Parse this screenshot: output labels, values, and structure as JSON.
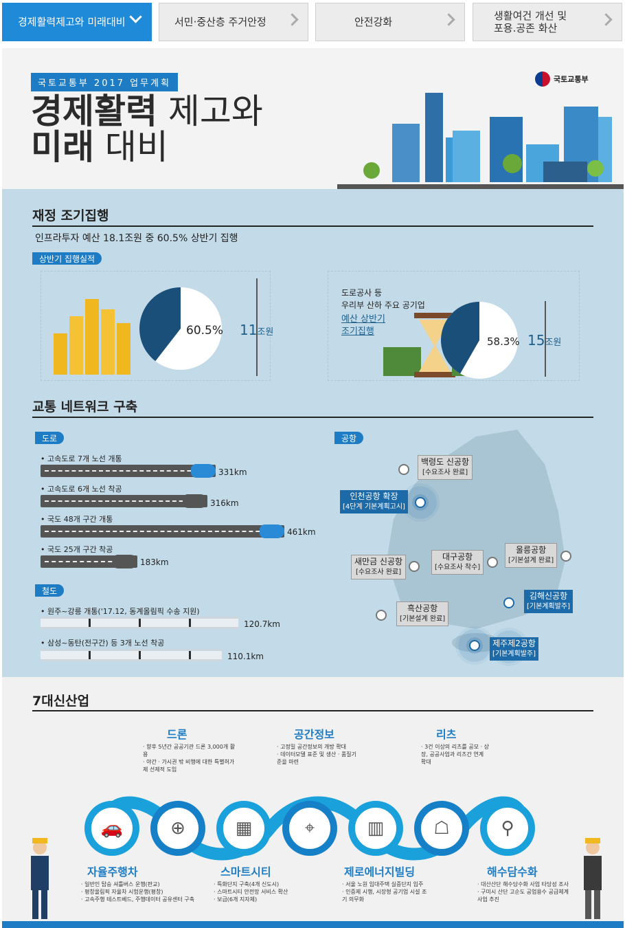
{
  "tabs": [
    {
      "label": "경제활력제고와 미래대비"
    },
    {
      "label": "서민·중산층 주거안정"
    },
    {
      "label": "안전강화"
    },
    {
      "label": "생활여건 개선 및\n포용.공존 화산"
    }
  ],
  "hero": {
    "tagline": "국토교통부 2017 업무계획",
    "title_bold_1": "경제활력",
    "title_light_1": " 제고와",
    "title_bold_2": "미래",
    "title_light_2": " 대비",
    "ministry": "국토교통부"
  },
  "finance": {
    "title": "재정 조기집행",
    "subtitle": "인프라투자 예산 18.1조원 중 60.5% 상반기 집행",
    "badge": "상반기 집행실적",
    "left_pct": "60.5%",
    "left_amount": "11",
    "left_unit": "조원",
    "right_desc_1": "도로공사 등",
    "right_desc_2": "우리부 산하 주요 공기업",
    "right_desc_3": "예산 상반기",
    "right_desc_4": "조기집행",
    "right_pct": "58.3%",
    "right_amount": "15",
    "right_unit": "조원",
    "left_share": 0.605,
    "right_share": 0.583
  },
  "network": {
    "title": "교통 네트워크 구축",
    "road_badge": "도로",
    "roads": [
      {
        "label": "고속도로 7개 노선 개통",
        "value": "331km",
        "km": 331
      },
      {
        "label": "고속도로 6개 노선 착공",
        "value": "316km",
        "km": 316
      },
      {
        "label": "국도 48개 구간 개통",
        "value": "461km",
        "km": 461
      },
      {
        "label": "국도 25개 구간 착공",
        "value": "183km",
        "km": 183
      }
    ],
    "rail_badge": "철도",
    "rails": [
      {
        "label": "원주~강릉 개통('17.12, 동계올림픽 수송 지원)",
        "value": "120.7km"
      },
      {
        "label": "삼성~동탄(전구간) 등 3개 노선 착공",
        "value": "110.1km"
      }
    ],
    "airport_badge": "공항",
    "airports": [
      {
        "name": "백령도 신공항",
        "status": "[수요조사 완료]"
      },
      {
        "name": "인천공항 확장",
        "status": "[4단계 기본계획고시]"
      },
      {
        "name": "새만금 신공항",
        "status": "[수요조사 완료]"
      },
      {
        "name": "대구공항",
        "status": "[수요조사 착수]"
      },
      {
        "name": "울릉공항",
        "status": "[기본설계 완료]"
      },
      {
        "name": "김해신공항",
        "status": "[기본계획발주]"
      },
      {
        "name": "흑산공항",
        "status": "[기본설계 완료]"
      },
      {
        "name": "제주제2공항",
        "status": "[기본계획발주]"
      }
    ]
  },
  "industries": {
    "title": "7대신산업",
    "items": [
      {
        "name": "드론",
        "bullets": [
          "향후 5년간 공공기관 드론 3,000개 활용",
          "야간 · 가시권 밖 비행에 대한 특별허가제 선제적 도입"
        ]
      },
      {
        "name": "공간정보",
        "bullets": [
          "고정밀 공간정보의 개방 확대",
          "데이터모델 표준 및 생산 · 품질기준을 마련"
        ]
      },
      {
        "name": "리츠",
        "bullets": [
          "3건 이상의 리츠를 공모 · 상장, 공공사업과 리츠간 연계 확대"
        ]
      },
      {
        "name": "자율주행차",
        "bullets": [
          "일반인 탑승 셔틀버스 운행(판교)",
          "평창올림픽 자율차 시험운행(평창)",
          "고속주행 테스트베드, 주행데이터 공유센터 구축"
        ]
      },
      {
        "name": "스마트시티",
        "bullets": [
          "특화단지 구축(4개 신도시)",
          "스마트시티 안전망 서비스 확산 · 보급(6개 지자체)"
        ]
      },
      {
        "name": "제로에너지빌딩",
        "bullets": [
          "서울 노원 임대주택 실증단지 입주",
          "인증제 시행, 시장형 공기업 시설 조기 의무화"
        ]
      },
      {
        "name": "해수담수화",
        "bullets": [
          "대산산단 해수담수화 사업 타당성 조사",
          "구미시 산단 고순도 공업용수 공급체계 사업 추진"
        ]
      }
    ]
  }
}
